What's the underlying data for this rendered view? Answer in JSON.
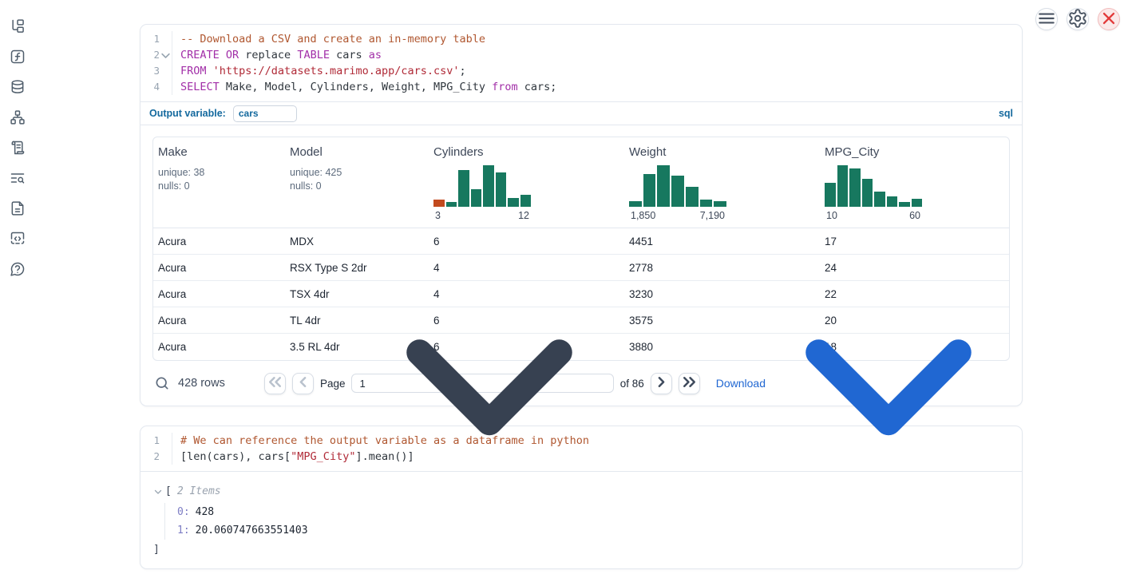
{
  "colors": {
    "hist_green": "#17785F",
    "hist_orange": "#C24A1E"
  },
  "sidebar": {
    "icons": [
      "file-tree",
      "function",
      "database",
      "dependency-graph",
      "scroll",
      "log-search",
      "document",
      "snippets",
      "help"
    ]
  },
  "topbar": {
    "buttons": [
      "menu",
      "gear",
      "close"
    ]
  },
  "sql_cell": {
    "lines": [
      {
        "num": "1",
        "fold": false,
        "tokens": [
          [
            "cmt",
            "-- Download a CSV and create an in-memory table"
          ]
        ]
      },
      {
        "num": "2",
        "fold": true,
        "tokens": [
          [
            "kw",
            "CREATE OR"
          ],
          [
            "pl",
            " replace "
          ],
          [
            "kw",
            "TABLE"
          ],
          [
            "pl",
            " cars "
          ],
          [
            "kw",
            "as"
          ]
        ]
      },
      {
        "num": "3",
        "fold": false,
        "tokens": [
          [
            "kw",
            "FROM"
          ],
          [
            "pl",
            " "
          ],
          [
            "str",
            "'https://datasets.marimo.app/cars.csv'"
          ],
          [
            "pl",
            ";"
          ]
        ]
      },
      {
        "num": "4",
        "fold": false,
        "tokens": [
          [
            "kw",
            "SELECT"
          ],
          [
            "pl",
            " Make, Model, Cylinders, Weight, MPG_City "
          ],
          [
            "kw",
            "from"
          ],
          [
            "pl",
            " cars;"
          ]
        ]
      }
    ],
    "output_variable_label": "Output variable:",
    "output_variable_value": "cars",
    "language_badge": "sql"
  },
  "table": {
    "columns": [
      {
        "name": "Make",
        "stats": [
          "unique: 38",
          "nulls: 0"
        ]
      },
      {
        "name": "Model",
        "stats": [
          "unique: 425",
          "nulls: 0"
        ]
      },
      {
        "name": "Cylinders",
        "hist": {
          "bars": [
            17,
            11,
            88,
            42,
            100,
            83,
            21,
            29
          ],
          "first_bar_orange": true,
          "min": "3",
          "max": "12"
        }
      },
      {
        "name": "Weight",
        "hist": {
          "bars": [
            13,
            79,
            100,
            75,
            48,
            17,
            13
          ],
          "first_bar_orange": false,
          "min": "1,850",
          "max": "7,190"
        }
      },
      {
        "name": "MPG_City",
        "hist": {
          "bars": [
            58,
            100,
            92,
            67,
            37,
            25,
            12,
            19
          ],
          "first_bar_orange": false,
          "min": "10",
          "max": "60"
        }
      }
    ],
    "rows": [
      [
        "Acura",
        "MDX",
        "6",
        "4451",
        "17"
      ],
      [
        "Acura",
        "RSX Type S 2dr",
        "4",
        "2778",
        "24"
      ],
      [
        "Acura",
        "TSX 4dr",
        "4",
        "3230",
        "22"
      ],
      [
        "Acura",
        "TL 4dr",
        "6",
        "3575",
        "20"
      ],
      [
        "Acura",
        "3.5 RL 4dr",
        "6",
        "3880",
        "18"
      ]
    ],
    "footer": {
      "row_count": "428 rows",
      "page_label": "Page",
      "page_value": "1",
      "of_label": "of 86",
      "download_label": "Download"
    }
  },
  "python_cell": {
    "lines": [
      {
        "num": "1",
        "fold": false,
        "tokens": [
          [
            "cmt",
            "# We can reference the output variable as a dataframe in python"
          ]
        ]
      },
      {
        "num": "2",
        "fold": false,
        "tokens": [
          [
            "pl",
            "[len(cars), cars["
          ],
          [
            "str",
            "\"MPG_City\""
          ],
          [
            "pl",
            "].mean()]"
          ]
        ]
      }
    ],
    "output": {
      "open_bracket": "[",
      "items_label": "2 Items",
      "entries": [
        {
          "key": "0:",
          "value": "428"
        },
        {
          "key": "1:",
          "value": "20.060747663551403"
        }
      ],
      "close_bracket": "]"
    }
  }
}
